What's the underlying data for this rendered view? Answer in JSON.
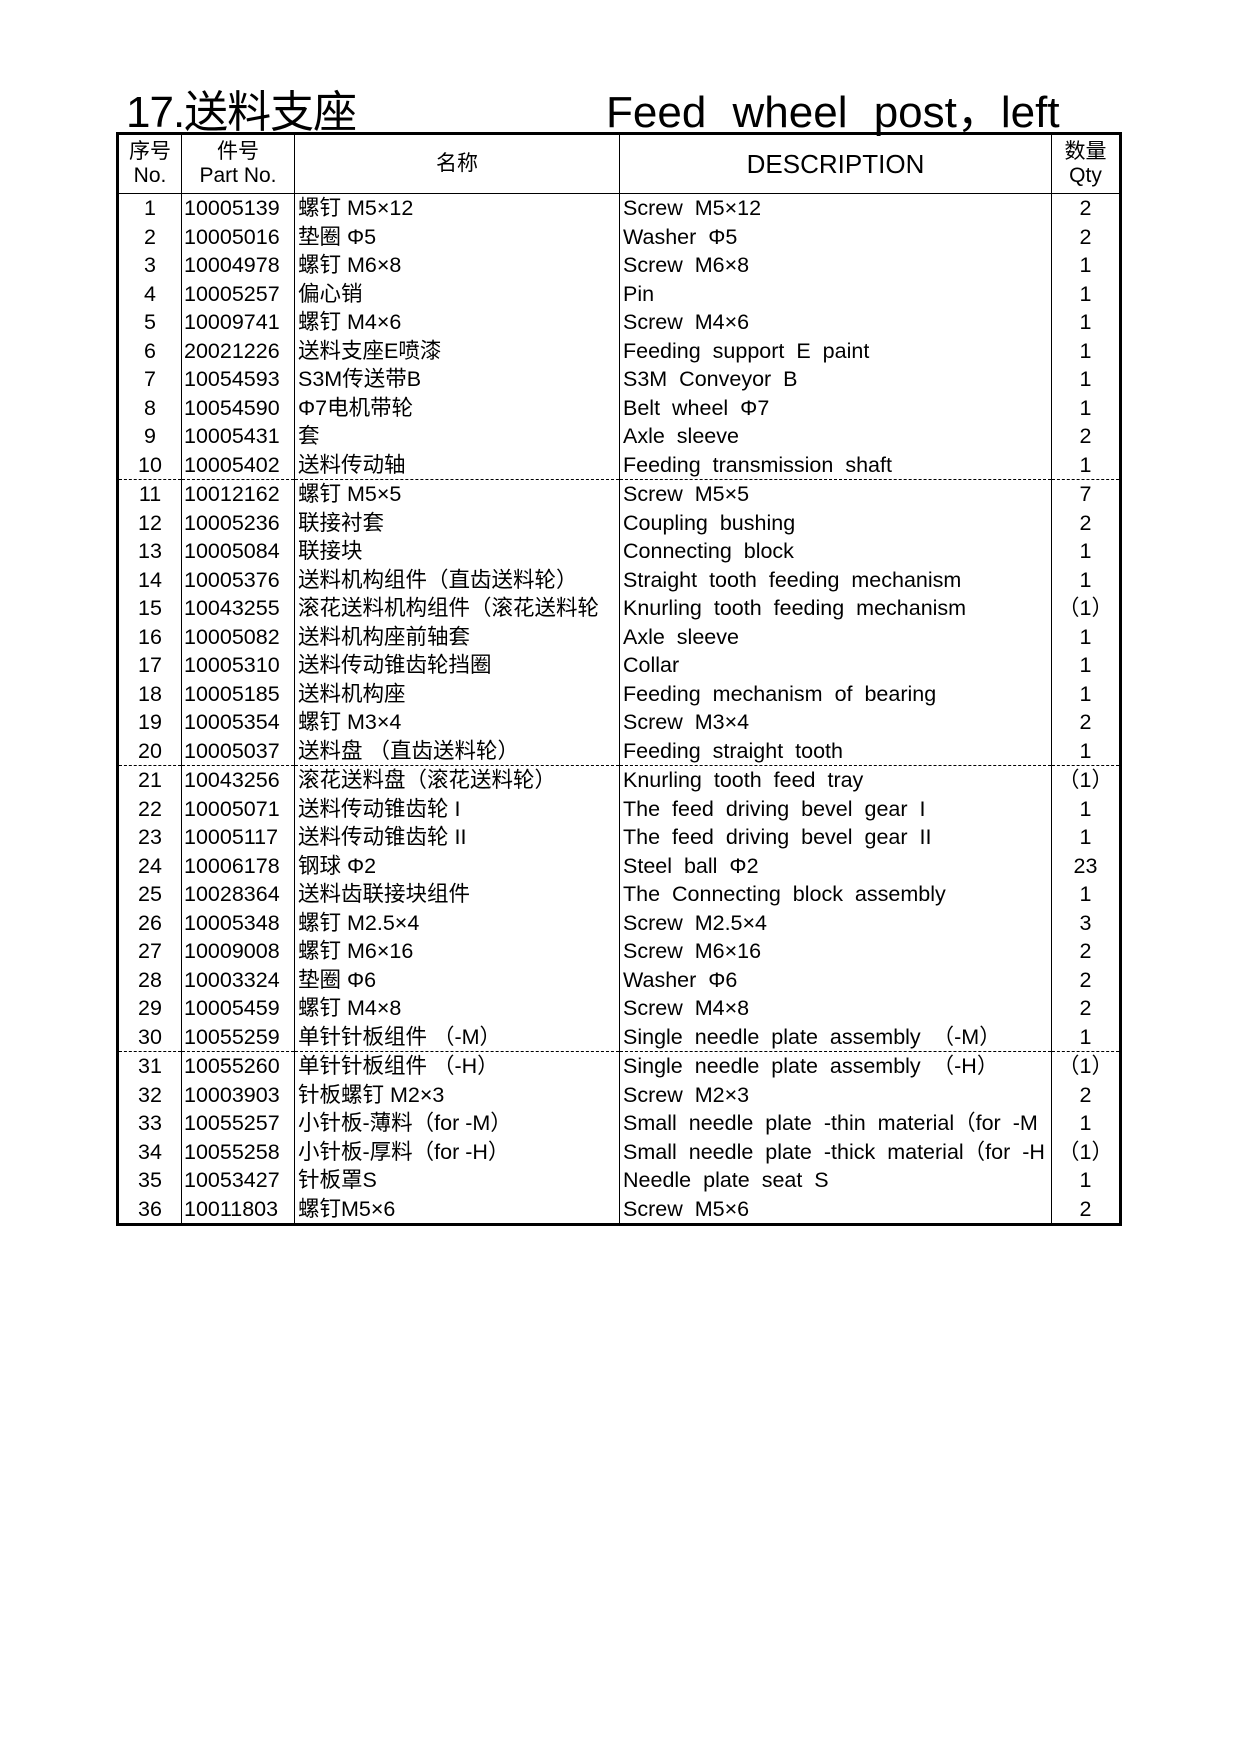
{
  "title": {
    "cn": "17.送料支座",
    "en": "Feed wheel post，left"
  },
  "header": {
    "no_cn": "序号",
    "no_en": "No.",
    "part_cn": "件号",
    "part_en": "Part No.",
    "name_cn": "名称",
    "description": "DESCRIPTION",
    "qty_cn": "数量",
    "qty_en": "Qty"
  },
  "rows": [
    {
      "no": "1",
      "part": "10005139",
      "cn": "螺钉  M5×12",
      "en": "Screw  M5×12",
      "qty": "2"
    },
    {
      "no": "2",
      "part": "10005016",
      "cn": "垫圈  Φ5",
      "en": "Washer  Φ5",
      "qty": "2"
    },
    {
      "no": "3",
      "part": "10004978",
      "cn": "螺钉  M6×8",
      "en": "Screw  M6×8",
      "qty": "1"
    },
    {
      "no": "4",
      "part": "10005257",
      "cn": "偏心销",
      "en": "Pin",
      "qty": "1"
    },
    {
      "no": "5",
      "part": "10009741",
      "cn": "螺钉  M4×6",
      "en": "Screw  M4×6",
      "qty": "1"
    },
    {
      "no": "6",
      "part": "20021226",
      "cn": "送料支座E喷漆",
      "en": "Feeding  support  E  paint",
      "qty": "1"
    },
    {
      "no": "7",
      "part": "10054593",
      "cn": "S3M传送带B",
      "en": "S3M Conveyor B",
      "qty": "1"
    },
    {
      "no": "8",
      "part": "10054590",
      "cn": "Φ7电机带轮",
      "en": "Belt wheel Φ7",
      "qty": "1"
    },
    {
      "no": "9",
      "part": "10005431",
      "cn": "套",
      "en": "Axle  sleeve",
      "qty": "2"
    },
    {
      "no": "10",
      "part": "10005402",
      "cn": "送料传动轴",
      "en": "Feeding  transmission  shaft",
      "qty": "1"
    },
    {
      "no": "11",
      "part": "10012162",
      "cn": "螺钉  M5×5",
      "en": "Screw  M5×5",
      "qty": "7"
    },
    {
      "no": "12",
      "part": "10005236",
      "cn": "联接衬套",
      "en": "Coupling  bushing",
      "qty": "2"
    },
    {
      "no": "13",
      "part": "10005084",
      "cn": "联接块",
      "en": "Connecting  block",
      "qty": "1"
    },
    {
      "no": "14",
      "part": "10005376",
      "cn": "送料机构组件（直齿送料轮）",
      "en": "Straight  tooth  feeding  mechanism",
      "qty": "1"
    },
    {
      "no": "15",
      "part": "10043255",
      "cn": "滚花送料机构组件（滚花送料轮",
      "en": "Knurling  tooth  feeding  mechanism",
      "qty": "（1）"
    },
    {
      "no": "16",
      "part": "10005082",
      "cn": "送料机构座前轴套",
      "en": "Axle  sleeve",
      "qty": "1"
    },
    {
      "no": "17",
      "part": "10005310",
      "cn": "送料传动锥齿轮挡圈",
      "en": "Collar",
      "qty": "1"
    },
    {
      "no": "18",
      "part": "10005185",
      "cn": "送料机构座",
      "en": "Feeding  mechanism  of  bearing",
      "qty": "1"
    },
    {
      "no": "19",
      "part": "10005354",
      "cn": "螺钉  M3×4",
      "en": "Screw  M3×4",
      "qty": "2"
    },
    {
      "no": "20",
      "part": "10005037",
      "cn": "送料盘  （直齿送料轮）",
      "en": "Feeding  straight  tooth",
      "qty": "1"
    },
    {
      "no": "21",
      "part": "10043256",
      "cn": "滚花送料盘（滚花送料轮）",
      "en": "Knurling  tooth  feed  tray",
      "qty": "（1）"
    },
    {
      "no": "22",
      "part": "10005071",
      "cn": "送料传动锥齿轮 I",
      "en": "The  feed  driving  bevel  gear   I",
      "qty": "1"
    },
    {
      "no": "23",
      "part": "10005117",
      "cn": "送料传动锥齿轮 II",
      "en": "The  feed  driving  bevel  gear   II",
      "qty": "1"
    },
    {
      "no": "24",
      "part": "10006178",
      "cn": "钢球 Φ2",
      "en": "Steel  ball   Φ2",
      "qty": "23"
    },
    {
      "no": "25",
      "part": "10028364",
      "cn": "送料齿联接块组件",
      "en": "The  Connecting  block  assembly",
      "qty": "1"
    },
    {
      "no": "26",
      "part": "10005348",
      "cn": "螺钉  M2.5×4",
      "en": "Screw  M2.5×4",
      "qty": "3"
    },
    {
      "no": "27",
      "part": "10009008",
      "cn": "螺钉  M6×16",
      "en": "Screw  M6×16",
      "qty": "2"
    },
    {
      "no": "28",
      "part": "10003324",
      "cn": "垫圈  Φ6",
      "en": "Washer  Φ6",
      "qty": "2"
    },
    {
      "no": "29",
      "part": "10005459",
      "cn": "螺钉  M4×8",
      "en": "Screw  M4×8",
      "qty": "2"
    },
    {
      "no": "30",
      "part": "10055259",
      "cn": "单针针板组件  （-M）",
      "en": "Single  needle  plate  assembly  （-M）",
      "qty": "1"
    },
    {
      "no": "31",
      "part": "10055260",
      "cn": "单针针板组件  （-H）",
      "en": "Single  needle  plate  assembly  （-H）",
      "qty": "（1）"
    },
    {
      "no": "32",
      "part": "10003903",
      "cn": "针板螺钉  M2×3",
      "en": "Screw  M2×3",
      "qty": "2"
    },
    {
      "no": "33",
      "part": "10055257",
      "cn": "小针板-薄料（for -M）",
      "en": "Small  needle  plate -thin  material（for -M",
      "qty": "1"
    },
    {
      "no": "34",
      "part": "10055258",
      "cn": "小针板-厚料（for -H）",
      "en": "Small  needle  plate -thick  material（for -H",
      "qty": "（1）"
    },
    {
      "no": "35",
      "part": "10053427",
      "cn": "针板罩S",
      "en": "Needle  plate  seat S",
      "qty": "1"
    },
    {
      "no": "36",
      "part": "10011803",
      "cn": "螺钉M5×6",
      "en": "Screw M5×6",
      "qty": "2"
    }
  ]
}
